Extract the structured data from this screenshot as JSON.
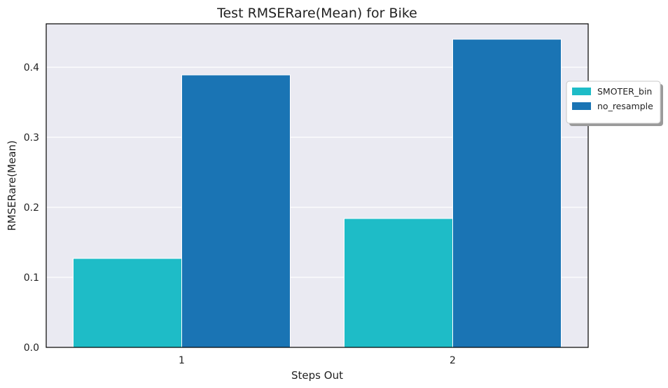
{
  "chart_data": {
    "type": "bar",
    "title": "Test RMSERare(Mean) for Bike",
    "xlabel": "Steps Out",
    "ylabel": "RMSERare(Mean)",
    "categories": [
      "1",
      "2"
    ],
    "series": [
      {
        "name": "SMOTER_bin",
        "color": "#1ebcc7",
        "values": [
          0.127,
          0.184
        ]
      },
      {
        "name": "no_resample",
        "color": "#1a74b4",
        "values": [
          0.389,
          0.44
        ]
      }
    ],
    "ylim": [
      0,
      0.462
    ],
    "yticks": [
      "0.0",
      "0.1",
      "0.2",
      "0.3",
      "0.4"
    ],
    "ytick_values": [
      0,
      0.1,
      0.2,
      0.3,
      0.4
    ],
    "grid": true,
    "legend_position": "right, outside plot",
    "plot_background": "#eaeaf2"
  }
}
